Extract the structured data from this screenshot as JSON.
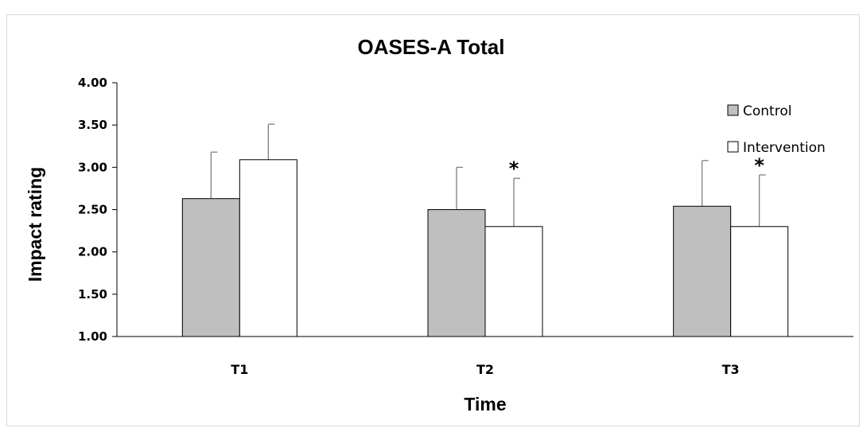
{
  "chart_data": {
    "type": "bar",
    "title": "OASES-A Total",
    "xlabel": "Time",
    "ylabel": "Impact rating",
    "categories": [
      "T1",
      "T2",
      "T3"
    ],
    "ylim": [
      1.0,
      4.0
    ],
    "yticks": [
      "1.00",
      "1.50",
      "2.00",
      "2.50",
      "3.00",
      "3.50",
      "4.00"
    ],
    "series": [
      {
        "name": "Control",
        "values": [
          2.63,
          2.5,
          2.54
        ],
        "error": [
          0.55,
          0.5,
          0.54
        ],
        "color": "#bfbfbf"
      },
      {
        "name": "Intervention",
        "values": [
          3.09,
          2.3,
          2.3
        ],
        "error": [
          0.42,
          0.57,
          0.61
        ],
        "color": "#ffffff"
      }
    ],
    "annotations": [
      {
        "category": "T2",
        "series": "Intervention",
        "text": "*"
      },
      {
        "category": "T3",
        "series": "Intervention",
        "text": "*"
      }
    ],
    "legend": "top-right",
    "grid": false,
    "error_bar_color": "#808080",
    "bar_outline_color": "#000000"
  }
}
